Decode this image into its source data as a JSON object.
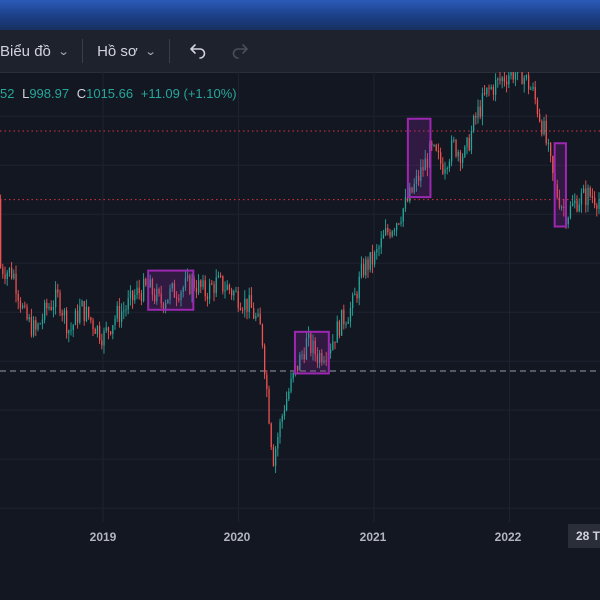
{
  "toolbar": {
    "chart_menu_label": "Biểu đồ",
    "profile_menu_label": "Hồ sơ"
  },
  "ohlc": {
    "open_tail": "52",
    "low_label": "L",
    "low_value": "998.97",
    "close_label": "C",
    "close_value": "1015.66",
    "change": "+11.09 (+1.10%)"
  },
  "crosshair_date_label": "28 T",
  "colors": {
    "up": "#26a69a",
    "down": "#ef5350",
    "level_line": "#f23645",
    "box": "#9c27b0",
    "grid": "#1f2330"
  },
  "chart_data": {
    "type": "candlestick",
    "x_tick_labels": [
      "2019",
      "2020",
      "2021",
      "2022"
    ],
    "y_range": [
      570,
      1530
    ],
    "dotted_resistance_levels": [
      1370,
      1230
    ],
    "dashed_support_level": 880,
    "rectangles": [
      {
        "x_start": "2019-05",
        "x_end": "2019-09",
        "y_low": 1005,
        "y_high": 1085
      },
      {
        "x_start": "2020-06",
        "x_end": "2020-09",
        "y_low": 875,
        "y_high": 960
      },
      {
        "x_start": "2021-04",
        "x_end": "2021-06",
        "y_low": 1235,
        "y_high": 1395
      },
      {
        "x_start": "2022-05",
        "x_end": "2022-06",
        "y_low": 1175,
        "y_high": 1345
      }
    ],
    "price_path": [
      [
        "2018-01",
        1230
      ],
      [
        "2018-02",
        1140
      ],
      [
        "2018-03",
        1100
      ],
      [
        "2018-05",
        1080
      ],
      [
        "2018-06",
        990
      ],
      [
        "2018-07",
        960
      ],
      [
        "2018-08",
        1010
      ],
      [
        "2018-09",
        1030
      ],
      [
        "2018-10",
        960
      ],
      [
        "2018-11",
        1010
      ],
      [
        "2018-12",
        980
      ],
      [
        "2019-01",
        950
      ],
      [
        "2019-02",
        990
      ],
      [
        "2019-03",
        1010
      ],
      [
        "2019-04",
        1040
      ],
      [
        "2019-05",
        1050
      ],
      [
        "2019-06",
        1020
      ],
      [
        "2019-07",
        1040
      ],
      [
        "2019-08",
        1050
      ],
      [
        "2019-09",
        1060
      ],
      [
        "2019-10",
        1040
      ],
      [
        "2019-11",
        1060
      ],
      [
        "2019-12",
        1050
      ],
      [
        "2020-01",
        1030
      ],
      [
        "2020-02",
        1010
      ],
      [
        "2020-03",
        960
      ],
      [
        "2020-04",
        700
      ],
      [
        "2020-05",
        810
      ],
      [
        "2020-06",
        880
      ],
      [
        "2020-07",
        940
      ],
      [
        "2020-08",
        910
      ],
      [
        "2020-09",
        930
      ],
      [
        "2020-10",
        980
      ],
      [
        "2020-11",
        1010
      ],
      [
        "2020-12",
        1090
      ],
      [
        "2021-01",
        1110
      ],
      [
        "2021-02",
        1160
      ],
      [
        "2021-03",
        1190
      ],
      [
        "2021-04",
        1230
      ],
      [
        "2021-05",
        1280
      ],
      [
        "2021-06",
        1330
      ],
      [
        "2021-07",
        1300
      ],
      [
        "2021-08",
        1340
      ],
      [
        "2021-09",
        1320
      ],
      [
        "2021-10",
        1400
      ],
      [
        "2021-11",
        1450
      ],
      [
        "2021-12",
        1470
      ],
      [
        "2022-01",
        1490
      ],
      [
        "2022-02",
        1490
      ],
      [
        "2022-03",
        1450
      ],
      [
        "2022-04",
        1370
      ],
      [
        "2022-05",
        1250
      ],
      [
        "2022-06",
        1200
      ],
      [
        "2022-07",
        1230
      ],
      [
        "2022-08",
        1240
      ],
      [
        "2022-09",
        1230
      ]
    ]
  }
}
